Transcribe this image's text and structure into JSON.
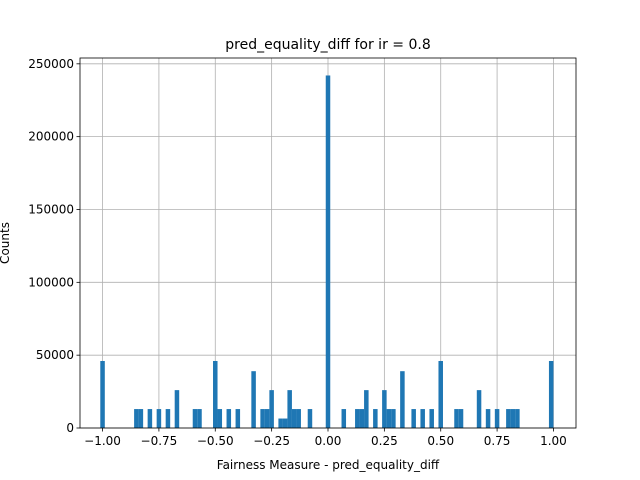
{
  "chart_data": {
    "type": "bar",
    "title": "pred_equality_diff for ir = 0.8",
    "xlabel": "Fairness Measure - pred_equality_diff",
    "ylabel": "Counts",
    "xlim": [
      -1.1,
      1.1
    ],
    "ylim": [
      0,
      254000
    ],
    "grid": true,
    "bar_color": "#1f77b4",
    "bin_width": 0.02,
    "xticks": [
      -1.0,
      -0.75,
      -0.5,
      -0.25,
      0.0,
      0.25,
      0.5,
      0.75,
      1.0
    ],
    "xtick_labels": [
      "−1.00",
      "−0.75",
      "−0.50",
      "−0.25",
      "0.00",
      "0.25",
      "0.50",
      "0.75",
      "1.00"
    ],
    "yticks": [
      0,
      50000,
      100000,
      150000,
      200000,
      250000
    ],
    "ytick_labels": [
      "0",
      "50000",
      "100000",
      "150000",
      "200000",
      "250000"
    ],
    "bins": [
      {
        "x": -1.0,
        "value": 46000
      },
      {
        "x": -0.85,
        "value": 13000
      },
      {
        "x": -0.83,
        "value": 13000
      },
      {
        "x": -0.79,
        "value": 13000
      },
      {
        "x": -0.75,
        "value": 13000
      },
      {
        "x": -0.71,
        "value": 13000
      },
      {
        "x": -0.67,
        "value": 26000
      },
      {
        "x": -0.59,
        "value": 13000
      },
      {
        "x": -0.57,
        "value": 13000
      },
      {
        "x": -0.5,
        "value": 46000
      },
      {
        "x": -0.48,
        "value": 13000
      },
      {
        "x": -0.44,
        "value": 13000
      },
      {
        "x": -0.4,
        "value": 13000
      },
      {
        "x": -0.33,
        "value": 39000
      },
      {
        "x": -0.29,
        "value": 13000
      },
      {
        "x": -0.27,
        "value": 13000
      },
      {
        "x": -0.25,
        "value": 26000
      },
      {
        "x": -0.21,
        "value": 6500
      },
      {
        "x": -0.19,
        "value": 6500
      },
      {
        "x": -0.17,
        "value": 26000
      },
      {
        "x": -0.15,
        "value": 13000
      },
      {
        "x": -0.13,
        "value": 13000
      },
      {
        "x": -0.08,
        "value": 13000
      },
      {
        "x": 0.0,
        "value": 242000
      },
      {
        "x": 0.07,
        "value": 13000
      },
      {
        "x": 0.13,
        "value": 13000
      },
      {
        "x": 0.15,
        "value": 13000
      },
      {
        "x": 0.17,
        "value": 26000
      },
      {
        "x": 0.21,
        "value": 13000
      },
      {
        "x": 0.25,
        "value": 26000
      },
      {
        "x": 0.27,
        "value": 13000
      },
      {
        "x": 0.29,
        "value": 13000
      },
      {
        "x": 0.33,
        "value": 39000
      },
      {
        "x": 0.38,
        "value": 13000
      },
      {
        "x": 0.42,
        "value": 13000
      },
      {
        "x": 0.46,
        "value": 13000
      },
      {
        "x": 0.5,
        "value": 46000
      },
      {
        "x": 0.57,
        "value": 13000
      },
      {
        "x": 0.59,
        "value": 13000
      },
      {
        "x": 0.67,
        "value": 26000
      },
      {
        "x": 0.71,
        "value": 13000
      },
      {
        "x": 0.75,
        "value": 13000
      },
      {
        "x": 0.8,
        "value": 13000
      },
      {
        "x": 0.82,
        "value": 13000
      },
      {
        "x": 0.84,
        "value": 13000
      },
      {
        "x": 0.99,
        "value": 46000
      }
    ]
  }
}
